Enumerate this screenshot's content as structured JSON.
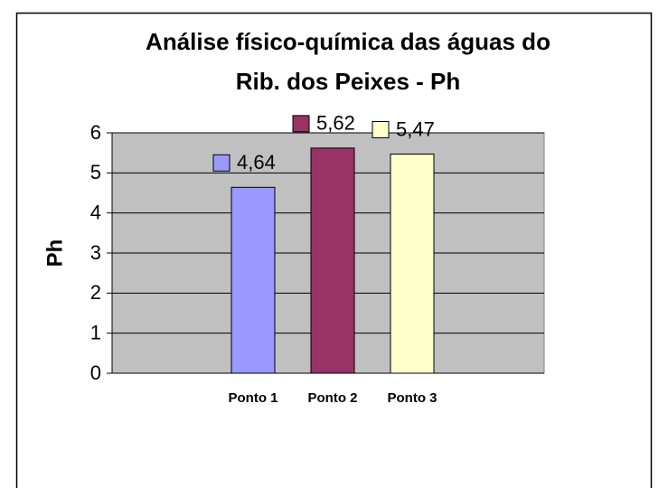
{
  "chart_data": {
    "type": "bar",
    "title": [
      "Análise físico-química das águas do",
      "Rib. dos Peixes - Ph"
    ],
    "y_label": "Ph",
    "categories": [
      "Ponto 1",
      "Ponto 2",
      "Ponto 3"
    ],
    "values": [
      4.64,
      5.62,
      5.47
    ],
    "value_labels": [
      "4,64",
      "5,62",
      "5,47"
    ],
    "colors": [
      "#9999ff",
      "#993366",
      "#ffffcc"
    ],
    "ylim": [
      0,
      6
    ],
    "yticks": [
      0,
      1,
      2,
      3,
      4,
      5,
      6
    ],
    "grid": true
  }
}
